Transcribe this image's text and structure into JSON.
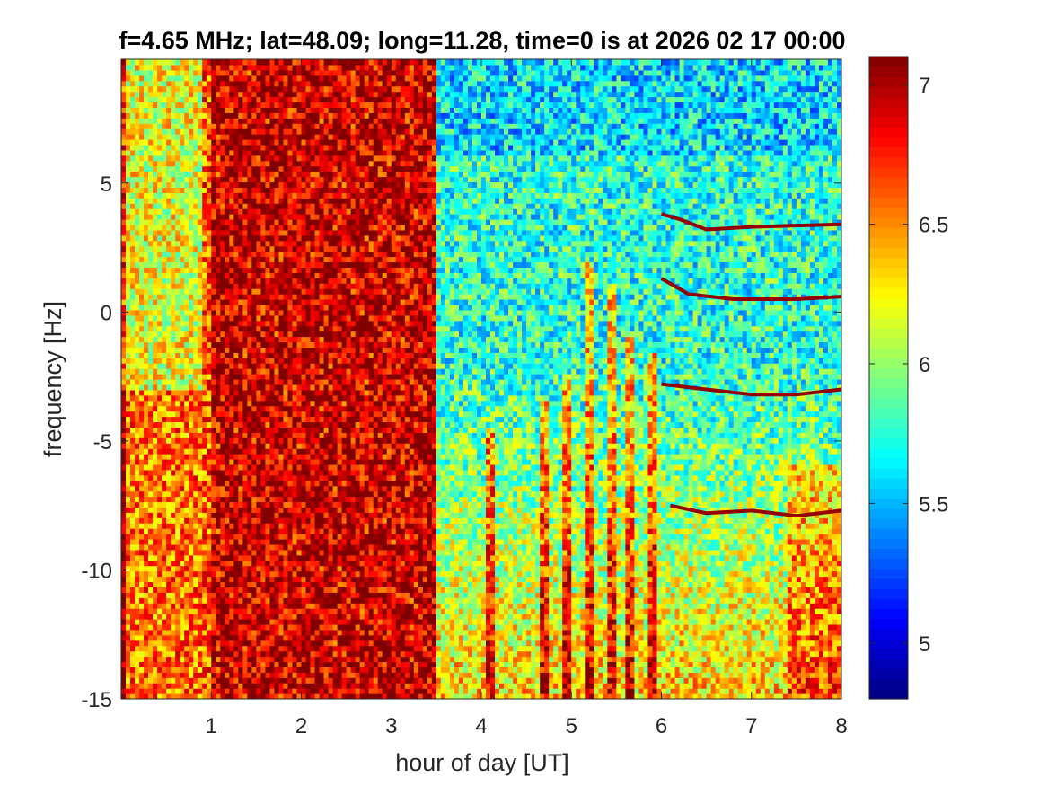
{
  "chart_data": {
    "type": "heatmap",
    "title": "f=4.65 MHz;  lat=48.09; long=11.28, time=0 is at 2026 02 17 00:00",
    "xlabel": "hour of day [UT]",
    "ylabel": "frequency [Hz]",
    "xlim": [
      0,
      8
    ],
    "ylim": [
      -15,
      9.8
    ],
    "xticks": [
      1,
      2,
      3,
      4,
      5,
      6,
      7,
      8
    ],
    "yticks": [
      -15,
      -10,
      -5,
      0,
      5
    ],
    "colormap": "jet",
    "clim": [
      4.8,
      7.1
    ],
    "colorbar_ticks": [
      5,
      5.5,
      6,
      6.5,
      7
    ],
    "colorbar_location": "right",
    "grid": false,
    "regions": [
      {
        "x": [
          0,
          0.9
        ],
        "level": 6.3
      },
      {
        "x": [
          1.0,
          3.5
        ],
        "level": 7.05
      },
      {
        "x": [
          3.5,
          8
        ],
        "level": 5.8
      }
    ],
    "traces": [
      {
        "x": [
          6.0,
          6.2,
          6.5,
          7.0,
          8.0
        ],
        "y": [
          3.8,
          3.6,
          3.2,
          3.3,
          3.4
        ]
      },
      {
        "x": [
          6.0,
          6.3,
          6.8,
          7.5,
          8.0
        ],
        "y": [
          1.3,
          0.7,
          0.5,
          0.5,
          0.6
        ]
      },
      {
        "x": [
          6.0,
          6.5,
          7.0,
          7.5,
          8.0
        ],
        "y": [
          -2.8,
          -3.0,
          -3.2,
          -3.2,
          -3.0
        ]
      },
      {
        "x": [
          6.1,
          6.5,
          7.0,
          7.5,
          8.0
        ],
        "y": [
          -7.5,
          -7.8,
          -7.7,
          -7.9,
          -7.7
        ]
      }
    ],
    "bursts": [
      {
        "x": 4.1,
        "top": -4.5
      },
      {
        "x": 4.7,
        "top": -3.5
      },
      {
        "x": 4.95,
        "top": -2.5
      },
      {
        "x": 5.2,
        "top": 2.0
      },
      {
        "x": 5.45,
        "top": 1.2
      },
      {
        "x": 5.65,
        "top": -1.0
      },
      {
        "x": 5.9,
        "top": -1.5
      }
    ]
  }
}
